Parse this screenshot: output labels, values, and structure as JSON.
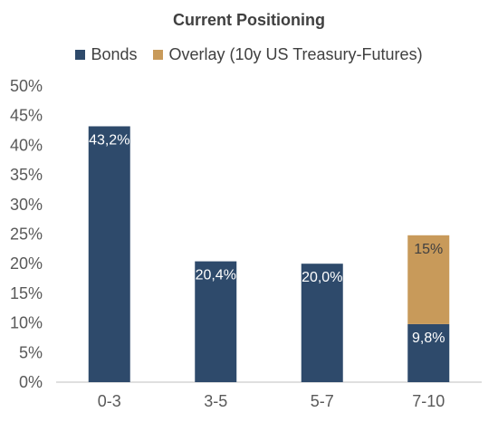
{
  "chart_data": {
    "type": "bar",
    "title": "Current Positioning",
    "categories": [
      "0-3",
      "3-5",
      "5-7",
      "7-10"
    ],
    "series": [
      {
        "name": "Bonds",
        "color": "#2E4A6B",
        "values": [
          43.2,
          20.4,
          20.0,
          9.8
        ],
        "labels": [
          "43,2%",
          "20,4%",
          "20,0%",
          "9,8%"
        ]
      },
      {
        "name": "Overlay (10y US Treasury-Futures)",
        "color": "#C89A5A",
        "values": [
          0,
          0,
          0,
          15
        ],
        "labels": [
          "",
          "",
          "",
          "15%"
        ]
      }
    ],
    "stacked": true,
    "ylim": [
      0,
      50
    ],
    "yticks": [
      "0%",
      "5%",
      "10%",
      "15%",
      "20%",
      "25%",
      "30%",
      "35%",
      "40%",
      "45%",
      "50%"
    ],
    "grid": false,
    "legend_position": "top"
  }
}
